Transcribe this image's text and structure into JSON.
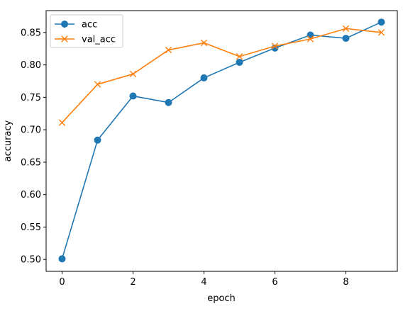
{
  "chart_data": {
    "type": "line",
    "title": "",
    "xlabel": "epoch",
    "ylabel": "accuracy",
    "xlim": [
      -0.45,
      9.45
    ],
    "ylim": [
      0.4817,
      0.8837
    ],
    "x_ticks": [
      0,
      2,
      4,
      6,
      8
    ],
    "y_ticks": [
      0.5,
      0.55,
      0.6,
      0.65,
      0.7,
      0.75,
      0.8,
      0.85
    ],
    "grid": false,
    "legend_position": "upper-left",
    "x": [
      0,
      1,
      2,
      3,
      4,
      5,
      6,
      7,
      8,
      9
    ],
    "series": [
      {
        "name": "acc",
        "color": "#1f77b4",
        "marker": "circle",
        "values": [
          0.501,
          0.684,
          0.752,
          0.742,
          0.78,
          0.804,
          0.826,
          0.846,
          0.841,
          0.866
        ]
      },
      {
        "name": "val_acc",
        "color": "#ff7f0e",
        "marker": "x",
        "values": [
          0.711,
          0.77,
          0.786,
          0.823,
          0.834,
          0.813,
          0.829,
          0.84,
          0.856,
          0.85
        ]
      }
    ]
  }
}
